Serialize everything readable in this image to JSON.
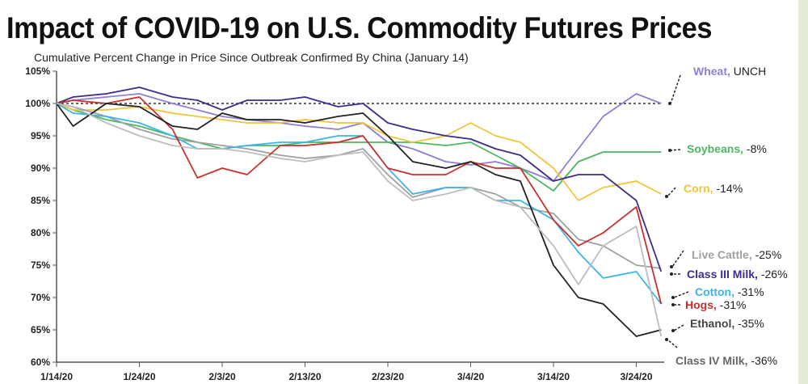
{
  "chart_data": {
    "type": "line",
    "title": "Impact of COVID-19 on U.S. Commodity Futures Prices",
    "subtitle": "Cumulative Percent Change in Price Since Outbreak Confirmed By China (January 14)",
    "xlabel": "",
    "ylabel": "",
    "ylim": [
      60,
      105
    ],
    "yticks": [
      "60%",
      "65%",
      "70%",
      "75%",
      "80%",
      "85%",
      "90%",
      "95%",
      "100%",
      "105%"
    ],
    "xticks": [
      "1/14/20",
      "1/24/20",
      "2/3/20",
      "2/13/20",
      "2/23/20",
      "3/4/20",
      "3/14/20",
      "3/24/20"
    ],
    "reference_line": {
      "value": 100,
      "style": "dotted"
    },
    "grid": false,
    "x": [
      "1/14",
      "1/16",
      "1/20",
      "1/24",
      "1/28",
      "1/31",
      "2/3",
      "2/6",
      "2/10",
      "2/13",
      "2/17",
      "2/20",
      "2/23",
      "2/26",
      "3/1",
      "3/4",
      "3/7",
      "3/10",
      "3/14",
      "3/17",
      "3/20",
      "3/24",
      "3/27"
    ],
    "series": [
      {
        "name": "Wheat",
        "change": "UNCH",
        "color": "#8e7fd6",
        "values": [
          100,
          100.5,
          101,
          101.5,
          100,
          99,
          98,
          97.5,
          97,
          96.5,
          96,
          97,
          94,
          93,
          91,
          90.5,
          91,
          90,
          88,
          93,
          98,
          101.5,
          100
        ]
      },
      {
        "name": "Soybeans",
        "change": "-8%",
        "color": "#4cb861",
        "values": [
          100,
          99,
          97.5,
          96.5,
          95,
          94,
          93,
          93.5,
          93.5,
          94,
          94,
          94,
          94,
          94,
          93.5,
          94,
          92,
          90,
          86.5,
          91,
          92.5,
          92.5,
          92.5
        ]
      },
      {
        "name": "Corn",
        "change": "-14%",
        "color": "#f0c53a",
        "values": [
          100,
          99,
          99,
          99.5,
          98.5,
          98,
          97.5,
          97,
          97,
          97.5,
          97,
          97,
          95,
          94,
          95,
          97,
          95,
          94,
          90,
          85,
          87,
          88,
          86
        ]
      },
      {
        "name": "Live Cattle",
        "change": "-25%",
        "color": "#a0a0a0",
        "values": [
          100,
          99.5,
          98,
          96,
          94.5,
          94,
          93.5,
          93,
          92,
          91.5,
          92,
          93,
          89,
          85.5,
          87,
          87,
          86,
          84,
          83,
          79,
          78,
          75,
          74.5
        ]
      },
      {
        "name": "Class III Milk",
        "change": "-26%",
        "color": "#3a2d8f",
        "values": [
          100,
          101,
          101.5,
          102.5,
          101,
          100.5,
          99,
          100.5,
          100.5,
          101,
          99.5,
          100,
          97,
          96,
          95,
          94.5,
          93,
          92,
          88,
          89,
          89,
          85,
          74
        ]
      },
      {
        "name": "Cotton",
        "change": "-31%",
        "color": "#3db4e8",
        "values": [
          100,
          98.5,
          98,
          97,
          95,
          93,
          93,
          93.5,
          94,
          94,
          95,
          95,
          90,
          86,
          87,
          87,
          85,
          85,
          82,
          77,
          73,
          74,
          69
        ]
      },
      {
        "name": "Hogs",
        "change": "-31%",
        "color": "#c8302c",
        "values": [
          100,
          100.5,
          100,
          101,
          96,
          88.5,
          90,
          89,
          93.5,
          93.5,
          94,
          95,
          90,
          89,
          89,
          91,
          90,
          90,
          82,
          78,
          80,
          84,
          69
        ]
      },
      {
        "name": "Ethanol",
        "change": "-35%",
        "color": "#222222",
        "values": [
          100,
          96.5,
          100,
          99.5,
          96.5,
          96,
          98.5,
          97.5,
          97.5,
          97,
          98,
          98.5,
          95,
          91,
          90,
          91,
          89,
          88,
          75,
          70,
          69,
          64,
          65
        ]
      },
      {
        "name": "Class IV Milk",
        "change": "-36%",
        "color": "#bdbdbd",
        "values": [
          100,
          99.5,
          97,
          95,
          93.5,
          93,
          93,
          92.5,
          91.5,
          91,
          92,
          92.5,
          88,
          85,
          86,
          87,
          85,
          84,
          78,
          72,
          78,
          81,
          64
        ]
      }
    ]
  }
}
